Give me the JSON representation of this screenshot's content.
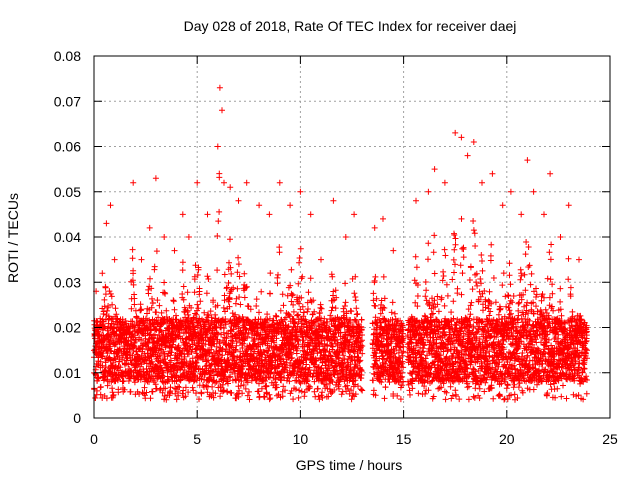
{
  "chart_data": {
    "type": "scatter",
    "title": "Day 028 of 2018, Rate Of TEC Index for receiver daej",
    "xlabel": "GPS time / hours",
    "ylabel": "ROTI / TECUs",
    "xlim": [
      0,
      25
    ],
    "ylim": [
      0,
      0.08
    ],
    "x_ticks": [
      0,
      5,
      10,
      15,
      20,
      25
    ],
    "y_ticks": [
      0,
      0.01,
      0.02,
      0.03,
      0.04,
      0.05,
      0.06,
      0.07,
      0.08
    ],
    "x_tick_labels": [
      "0",
      "5",
      "10",
      "15",
      "20",
      "25"
    ],
    "y_tick_labels": [
      "0",
      "0.01",
      "0.02",
      "0.03",
      "0.04",
      "0.05",
      "0.06",
      "0.07",
      "0.08"
    ],
    "grid": true,
    "marker": "+",
    "color": "#ff0000",
    "x_coverage": [
      [
        0,
        13.0
      ],
      [
        13.5,
        15.0
      ],
      [
        15.2,
        23.9
      ]
    ],
    "baseline_range": [
      0.008,
      0.022
    ],
    "series": [
      {
        "name": "ROTI",
        "x": [
          0.1,
          0.4,
          0.6,
          0.8,
          1.0,
          1.9,
          2.3,
          2.7,
          3.0,
          3.4,
          3.9,
          4.3,
          4.6,
          5.0,
          5.5,
          6.0,
          6.1,
          6.2,
          6.3,
          6.6,
          7.0,
          7.4,
          8.0,
          8.5,
          9.0,
          9.5,
          10.0,
          10.5,
          11.0,
          11.6,
          12.2,
          12.6,
          13.6,
          14.0,
          14.5,
          15.6,
          16.2,
          16.5,
          17.0,
          17.5,
          17.8,
          18.1,
          18.4,
          18.8,
          19.3,
          19.8,
          20.2,
          20.7,
          21.0,
          21.3,
          21.8,
          22.1,
          22.6,
          23.0,
          23.5
        ],
        "y": [
          0.028,
          0.032,
          0.043,
          0.047,
          0.035,
          0.052,
          0.035,
          0.042,
          0.053,
          0.04,
          0.037,
          0.045,
          0.04,
          0.052,
          0.045,
          0.06,
          0.073,
          0.068,
          0.052,
          0.051,
          0.048,
          0.052,
          0.047,
          0.045,
          0.052,
          0.047,
          0.05,
          0.045,
          0.035,
          0.048,
          0.04,
          0.045,
          0.042,
          0.044,
          0.037,
          0.048,
          0.05,
          0.055,
          0.052,
          0.063,
          0.062,
          0.058,
          0.061,
          0.052,
          0.054,
          0.047,
          0.05,
          0.045,
          0.057,
          0.05,
          0.045,
          0.054,
          0.04,
          0.047,
          0.035
        ]
      }
    ]
  }
}
